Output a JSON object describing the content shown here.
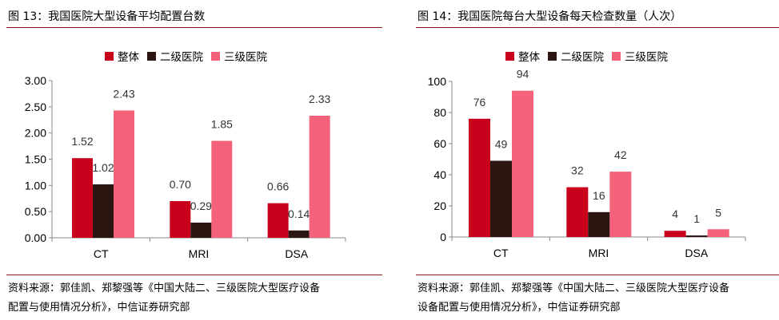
{
  "colors": {
    "total": "#c8001c",
    "level2": "#2b1612",
    "level3": "#f4617a",
    "rule": "#8b1a1a"
  },
  "legend": {
    "total": "整体",
    "level2": "二级医院",
    "level3": "三级医院"
  },
  "left": {
    "title": "图 13：我国医院大型设备平均配置台数",
    "source_line1": "资料来源：郭佳凯、郑黎强等《中国大陆二、三级医院大型医疗设备",
    "source_line2": "配置与使用情况分析》，中信证券研究部"
  },
  "right": {
    "title": "图 14：我国医院每台大型设备每天检查数量（人次）",
    "source_line1": "资料来源：郭佳凯、郑黎强等《中国大陆二、三级医院大型医疗设备",
    "source_line2": "设备配置与使用情况分析》，中信证券研究部"
  },
  "chart_data": [
    {
      "type": "bar",
      "title": "我国医院大型设备平均配置台数",
      "categories": [
        "CT",
        "MRI",
        "DSA"
      ],
      "series": [
        {
          "name": "整体",
          "values": [
            1.52,
            0.7,
            0.66
          ],
          "labels": [
            "1.52",
            "0.70",
            "0.66"
          ]
        },
        {
          "name": "二级医院",
          "values": [
            1.02,
            0.29,
            0.14
          ],
          "labels": [
            "1.02",
            "0.29",
            "0.14"
          ]
        },
        {
          "name": "三级医院",
          "values": [
            2.43,
            1.85,
            2.33
          ],
          "labels": [
            "2.43",
            "1.85",
            "2.33"
          ]
        }
      ],
      "yticks": [
        "0.00",
        "0.50",
        "1.00",
        "1.50",
        "2.00",
        "2.50",
        "3.00"
      ],
      "ylim": [
        0,
        3
      ],
      "xlabel": "",
      "ylabel": "",
      "legend": "top-left",
      "grid": false
    },
    {
      "type": "bar",
      "title": "我国医院每台大型设备每天检查数量（人次）",
      "categories": [
        "CT",
        "MRI",
        "DSA"
      ],
      "series": [
        {
          "name": "整体",
          "values": [
            76,
            32,
            4
          ],
          "labels": [
            "76",
            "32",
            "4"
          ]
        },
        {
          "name": "二级医院",
          "values": [
            49,
            16,
            1
          ],
          "labels": [
            "49",
            "16",
            "1"
          ]
        },
        {
          "name": "三级医院",
          "values": [
            94,
            42,
            5
          ],
          "labels": [
            "94",
            "42",
            "5"
          ]
        }
      ],
      "yticks": [
        "0",
        "20",
        "40",
        "60",
        "80",
        "100"
      ],
      "ylim": [
        0,
        100
      ],
      "xlabel": "",
      "ylabel": "",
      "legend": "top-left",
      "grid": false
    }
  ]
}
